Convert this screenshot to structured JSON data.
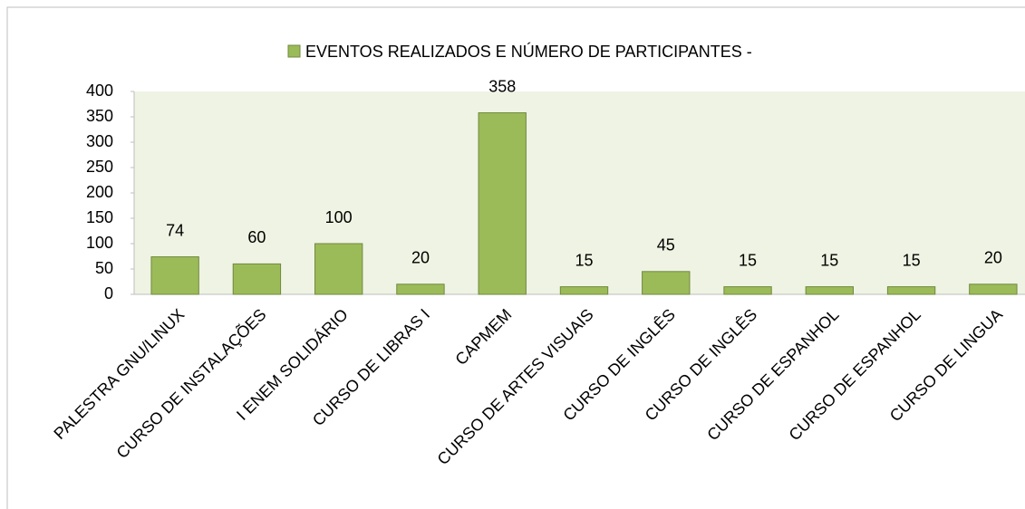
{
  "chart_data": {
    "type": "bar",
    "categories": [
      "PALESTRA GNU/LINUX",
      "CURSO DE INSTALAÇÕES",
      "I ENEM SOLIDÁRIO",
      "CURSO DE LIBRAS I",
      "CAPMEM",
      "CURSO DE ARTES VISUAIS",
      "CURSO DE INGLÊS",
      "CURSO DE INGLÊS",
      "CURSO DE ESPANHOL",
      "CURSO DE ESPANHOL",
      "CURSO DE LINGUA"
    ],
    "series": [
      {
        "name": "EVENTOS REALIZADOS E NÚMERO DE PARTICIPANTES -",
        "color": "#9bbb59",
        "values": [
          74,
          60,
          100,
          20,
          358,
          15,
          45,
          15,
          15,
          15,
          20
        ]
      }
    ],
    "ylim": [
      0,
      400
    ],
    "yticks": [
      0,
      50,
      100,
      150,
      200,
      250,
      300,
      350,
      400
    ],
    "legend": "top"
  }
}
